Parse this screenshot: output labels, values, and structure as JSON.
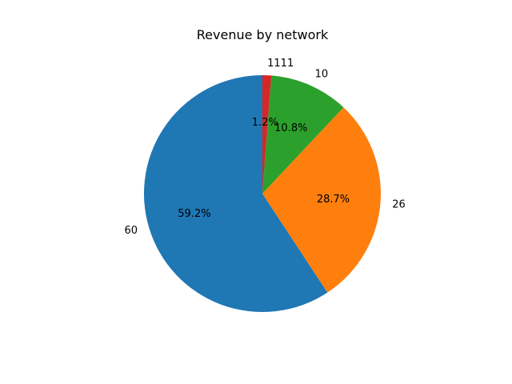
{
  "chart_data": {
    "type": "pie",
    "title": "Revenue by network",
    "labels": [
      "60",
      "26",
      "10",
      "1111"
    ],
    "values": [
      59.2,
      28.7,
      10.8,
      1.2
    ],
    "percent_labels": [
      "59.2%",
      "28.7%",
      "10.8%",
      "1.2%"
    ],
    "colors": [
      "#1f77b4",
      "#ff7f0e",
      "#2ca02c",
      "#d62728"
    ],
    "start_angle_deg": 90,
    "direction": "counterclockwise"
  }
}
